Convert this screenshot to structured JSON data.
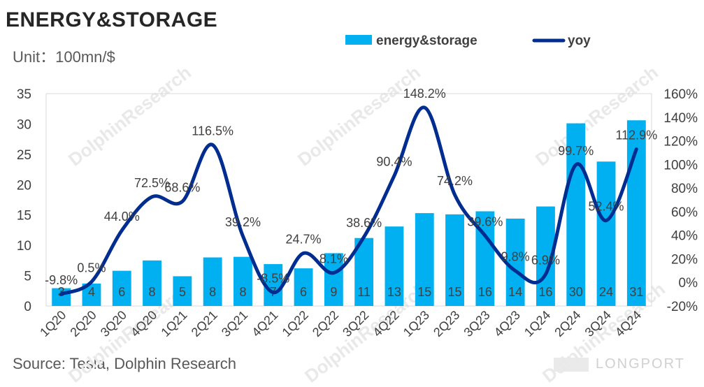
{
  "page": {
    "title": "ENERGY&STORAGE",
    "unit": "Unit：100mn/$",
    "source": "Source: Tesla, Dolphin Research",
    "brand": "LONGPORT",
    "watermark": "DolphinResearch"
  },
  "chart_data": {
    "type": "bar",
    "title": "ENERGY&STORAGE",
    "xlabel": "",
    "ylabel": "Unit：100mn/$",
    "categories": [
      "1Q20",
      "2Q20",
      "3Q20",
      "4Q20",
      "1Q21",
      "2Q21",
      "3Q21",
      "4Q21",
      "1Q22",
      "2Q22",
      "3Q22",
      "4Q22",
      "1Q23",
      "2Q23",
      "3Q23",
      "4Q23",
      "1Q24",
      "2Q24",
      "3Q24",
      "4Q24"
    ],
    "series": [
      {
        "name": "energy&storage",
        "type": "bar",
        "axis": "left",
        "color": "#00B0F0",
        "values": [
          2.93,
          3.7,
          5.8,
          7.5,
          4.9,
          8.0,
          8.1,
          6.9,
          6.2,
          8.7,
          11.2,
          13.1,
          15.3,
          15.1,
          15.6,
          14.4,
          16.4,
          30.1,
          23.8,
          30.6
        ],
        "labels": [
          "3",
          "4",
          "6",
          "8",
          "5",
          "8",
          "8",
          "7",
          "6",
          "9",
          "11",
          "13",
          "15",
          "15",
          "16",
          "14",
          "16",
          "30",
          "24",
          "31"
        ]
      },
      {
        "name": "yoy",
        "type": "line",
        "axis": "right",
        "color": "#002D8F",
        "values": [
          -9.8,
          0.5,
          44.0,
          72.5,
          68.6,
          116.5,
          39.2,
          -8.5,
          24.7,
          8.1,
          38.6,
          90.4,
          148.2,
          74.2,
          39.6,
          9.8,
          6.9,
          99.7,
          52.4,
          112.9
        ],
        "labels": [
          "-9.8%",
          "0.5%",
          "44.0%",
          "72.5%",
          "68.6%",
          "116.5%",
          "39.2%",
          "-8.5%",
          "24.7%",
          "8.1%",
          "38.6%",
          "90.4%",
          "148.2%",
          "74.2%",
          "39.6%",
          "9.8%",
          "6.9%",
          "99.7%",
          "52.4%",
          "112.9%"
        ]
      }
    ],
    "ylim": [
      0,
      35
    ],
    "yticks": [
      "0",
      "5",
      "10",
      "15",
      "20",
      "25",
      "30",
      "35"
    ],
    "y2lim": [
      -20,
      160
    ],
    "y2ticks": [
      "-20%",
      "0%",
      "20%",
      "40%",
      "60%",
      "80%",
      "100%",
      "120%",
      "140%",
      "160%"
    ],
    "legend": [
      {
        "name": "energy&storage",
        "kind": "bar",
        "color": "#00B0F0"
      },
      {
        "name": "yoy",
        "kind": "line",
        "color": "#002D8F"
      }
    ],
    "legend_position": "top"
  }
}
